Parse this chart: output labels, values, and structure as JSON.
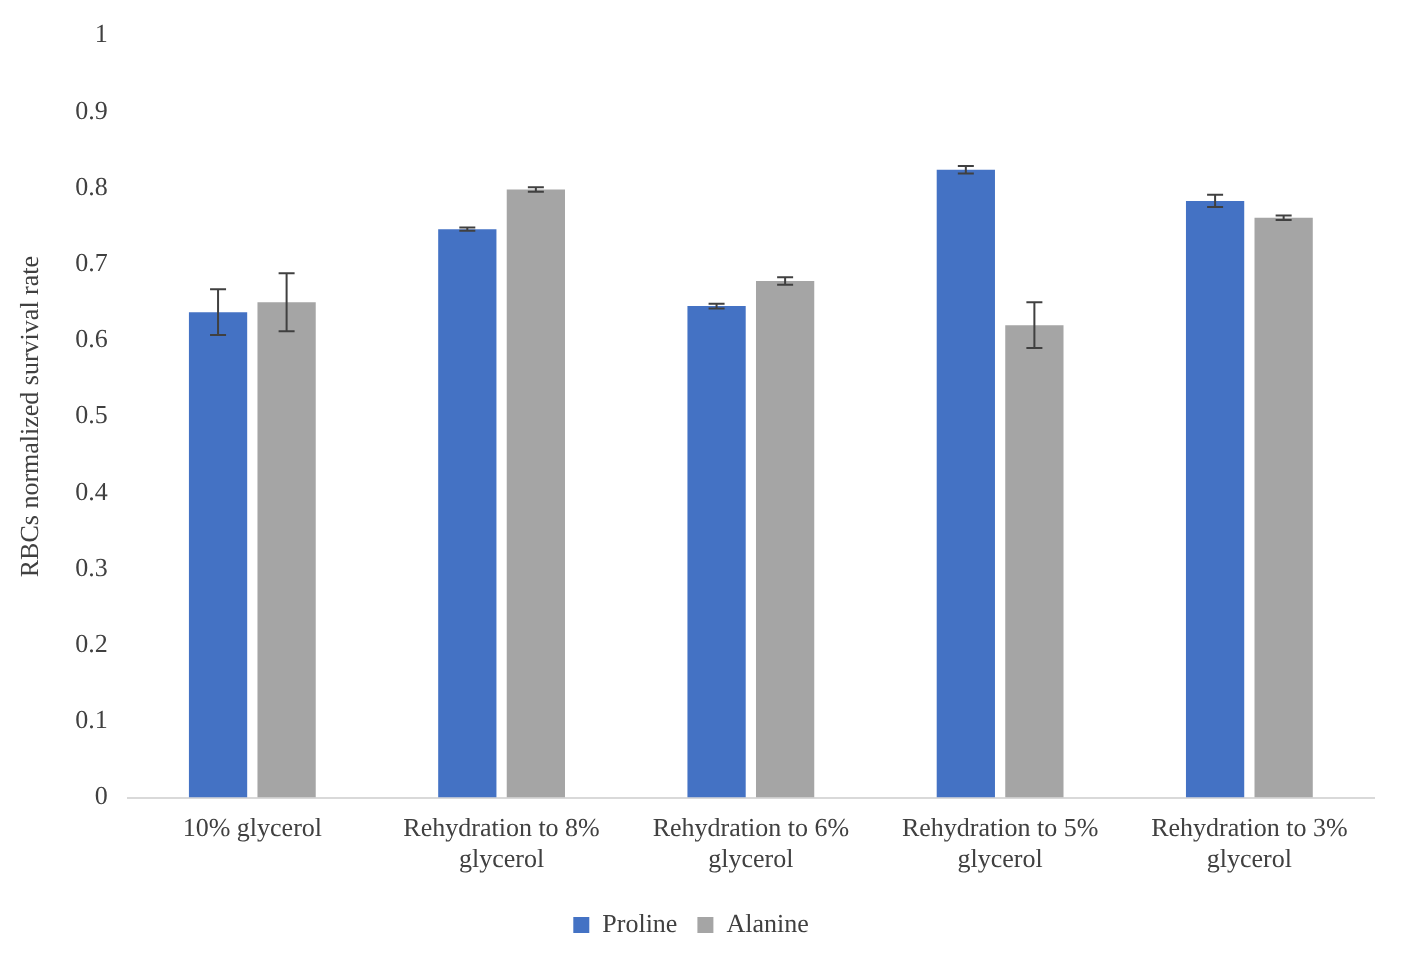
{
  "chart_data": {
    "type": "bar",
    "ylabel": "RBCs normalized survival rate",
    "categories": [
      "10% glycerol",
      "Rehydration to 8% glycerol",
      "Rehydration to 6% glycerol",
      "Rehydration to 5% glycerol",
      "Rehydration to 3% glycerol"
    ],
    "series": [
      {
        "name": "Proline",
        "color": "#4472c4",
        "values": [
          0.637,
          0.746,
          0.645,
          0.824,
          0.783
        ],
        "errors": [
          0.03,
          0.002,
          0.003,
          0.005,
          0.008
        ]
      },
      {
        "name": "Alanine",
        "color": "#a5a5a5",
        "values": [
          0.65,
          0.798,
          0.678,
          0.62,
          0.761
        ],
        "errors": [
          0.038,
          0.003,
          0.005,
          0.03,
          0.003
        ]
      }
    ],
    "ylim": [
      0,
      1
    ],
    "yticks": [
      0,
      0.1,
      0.2,
      0.3,
      0.4,
      0.5,
      0.6,
      0.7,
      0.8,
      0.9,
      1
    ],
    "grid": false,
    "legend": "bottom"
  }
}
